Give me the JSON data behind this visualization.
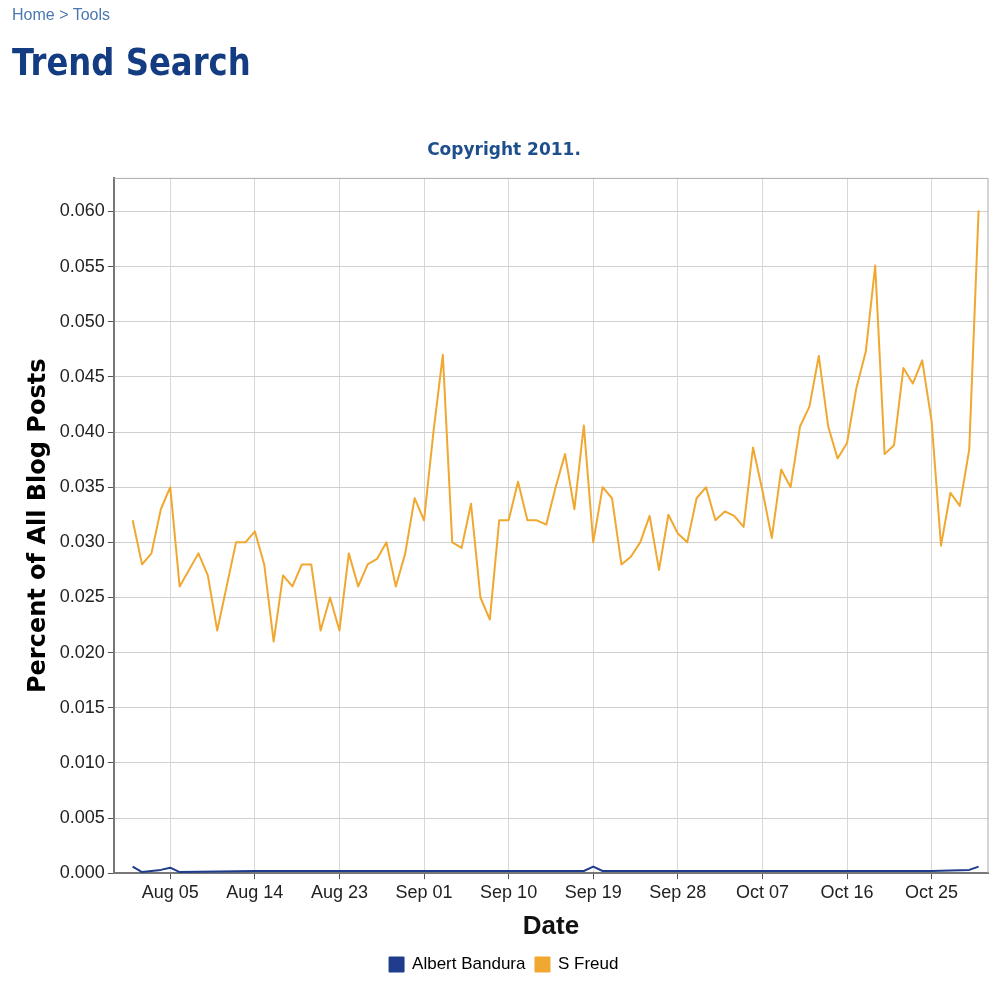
{
  "chart_data": {
    "type": "line",
    "title": "Trend Search",
    "subtitle": "Copyright 2011.",
    "annotations": [
      "Home > Tools"
    ],
    "xlabel": "Date",
    "ylabel": "Percent of All Blog Posts",
    "xlim": [
      "--07-30",
      "--10-31"
    ],
    "xticks": [
      {
        "value": "--08-05",
        "label": "Aug 05"
      },
      {
        "value": "--08-14",
        "label": "Aug 14"
      },
      {
        "value": "--08-23",
        "label": "Aug 23"
      },
      {
        "value": "--09-01",
        "label": "Sep 01"
      },
      {
        "value": "--09-10",
        "label": "Sep 10"
      },
      {
        "value": "--09-19",
        "label": "Sep 19"
      },
      {
        "value": "--09-28",
        "label": "Sep 28"
      },
      {
        "value": "--10-07",
        "label": "Oct 07"
      },
      {
        "value": "--10-16",
        "label": "Oct 16"
      },
      {
        "value": "--10-25",
        "label": "Oct 25"
      }
    ],
    "ylim": [
      0,
      0.063
    ],
    "yticks": [
      {
        "value": 0,
        "label": "0.000"
      },
      {
        "value": 0.005,
        "label": "0.005"
      },
      {
        "value": 0.01,
        "label": "0.010"
      },
      {
        "value": 0.015,
        "label": "0.015"
      },
      {
        "value": 0.02,
        "label": "0.020"
      },
      {
        "value": 0.025,
        "label": "0.025"
      },
      {
        "value": 0.03,
        "label": "0.030"
      },
      {
        "value": 0.035,
        "label": "0.035"
      },
      {
        "value": 0.04,
        "label": "0.040"
      },
      {
        "value": 0.045,
        "label": "0.045"
      },
      {
        "value": 0.05,
        "label": "0.050"
      },
      {
        "value": 0.055,
        "label": "0.055"
      },
      {
        "value": 0.06,
        "label": "0.060"
      }
    ],
    "grid": true,
    "legend": "bottom",
    "marker": "none",
    "line_style": "solid",
    "series": [
      {
        "name": "Albert Bandura",
        "color": "#1f3d8c",
        "x": [
          "--08-01",
          "--08-02",
          "--08-04",
          "--08-05",
          "--08-06",
          "--08-14",
          "--08-23",
          "--09-01",
          "--09-10",
          "--09-18",
          "--09-19",
          "--09-20",
          "--10-07",
          "--10-16",
          "--10-25",
          "--10-29",
          "--10-30"
        ],
        "values": [
          0.0006,
          0.0001,
          0.0003,
          0.0005,
          0.0001,
          0.0002,
          0.0002,
          0.0002,
          0.0002,
          0.0002,
          0.0006,
          0.0002,
          0.0002,
          0.0002,
          0.0002,
          0.0003,
          0.0006
        ]
      },
      {
        "name": "S Freud",
        "color": "#f0a830",
        "x": [
          "--08-01",
          "--08-02",
          "--08-03",
          "--08-04",
          "--08-05",
          "--08-06",
          "--08-08",
          "--08-09",
          "--08-10",
          "--08-12",
          "--08-13",
          "--08-14",
          "--08-15",
          "--08-16",
          "--08-17",
          "--08-18",
          "--08-19",
          "--08-20",
          "--08-21",
          "--08-22",
          "--08-23",
          "--08-24",
          "--08-25",
          "--08-26",
          "--08-27",
          "--08-28",
          "--08-29",
          "--08-30",
          "--08-31",
          "--09-01",
          "--09-02",
          "--09-03",
          "--09-04",
          "--09-05",
          "--09-06",
          "--09-07",
          "--09-08",
          "--09-09",
          "--09-10",
          "--09-11",
          "--09-12",
          "--09-13",
          "--09-14",
          "--09-15",
          "--09-16",
          "--09-17",
          "--09-18",
          "--09-19",
          "--09-20",
          "--09-21",
          "--09-22",
          "--09-23",
          "--09-24",
          "--09-25",
          "--09-26",
          "--09-27",
          "--09-28",
          "--09-29",
          "--09-30",
          "--10-01",
          "--10-02",
          "--10-03",
          "--10-04",
          "--10-05",
          "--10-06",
          "--10-07",
          "--10-08",
          "--10-09",
          "--10-10",
          "--10-11",
          "--10-12",
          "--10-13",
          "--10-14",
          "--10-15",
          "--10-16",
          "--10-17",
          "--10-18",
          "--10-19",
          "--10-20",
          "--10-21",
          "--10-22",
          "--10-23",
          "--10-24",
          "--10-25",
          "--10-26",
          "--10-27",
          "--10-28",
          "--10-29",
          "--10-30"
        ],
        "values": [
          0.032,
          0.028,
          0.029,
          0.033,
          0.035,
          0.026,
          0.029,
          0.027,
          0.022,
          0.03,
          0.03,
          0.031,
          0.028,
          0.021,
          0.027,
          0.026,
          0.028,
          0.028,
          0.022,
          0.025,
          0.022,
          0.029,
          0.026,
          0.028,
          0.0285,
          0.03,
          0.026,
          0.029,
          0.034,
          0.032,
          0.04,
          0.047,
          0.03,
          0.0295,
          0.0335,
          0.025,
          0.023,
          0.032,
          0.032,
          0.0355,
          0.032,
          0.032,
          0.0316,
          0.035,
          0.038,
          0.033,
          0.0406,
          0.03,
          0.035,
          0.034,
          0.028,
          0.0287,
          0.03,
          0.0324,
          0.0275,
          0.0325,
          0.0308,
          0.03,
          0.034,
          0.035,
          0.032,
          0.0328,
          0.0324,
          0.0314,
          0.0386,
          0.0347,
          0.0304,
          0.0366,
          0.035,
          0.0405,
          0.0423,
          0.0469,
          0.0405,
          0.0376,
          0.039,
          0.044,
          0.0473,
          0.0551,
          0.038,
          0.0388,
          0.0458,
          0.0444,
          0.0465,
          0.041,
          0.0297,
          0.0345,
          0.0333,
          0.0384,
          0.0601
        ]
      }
    ]
  }
}
